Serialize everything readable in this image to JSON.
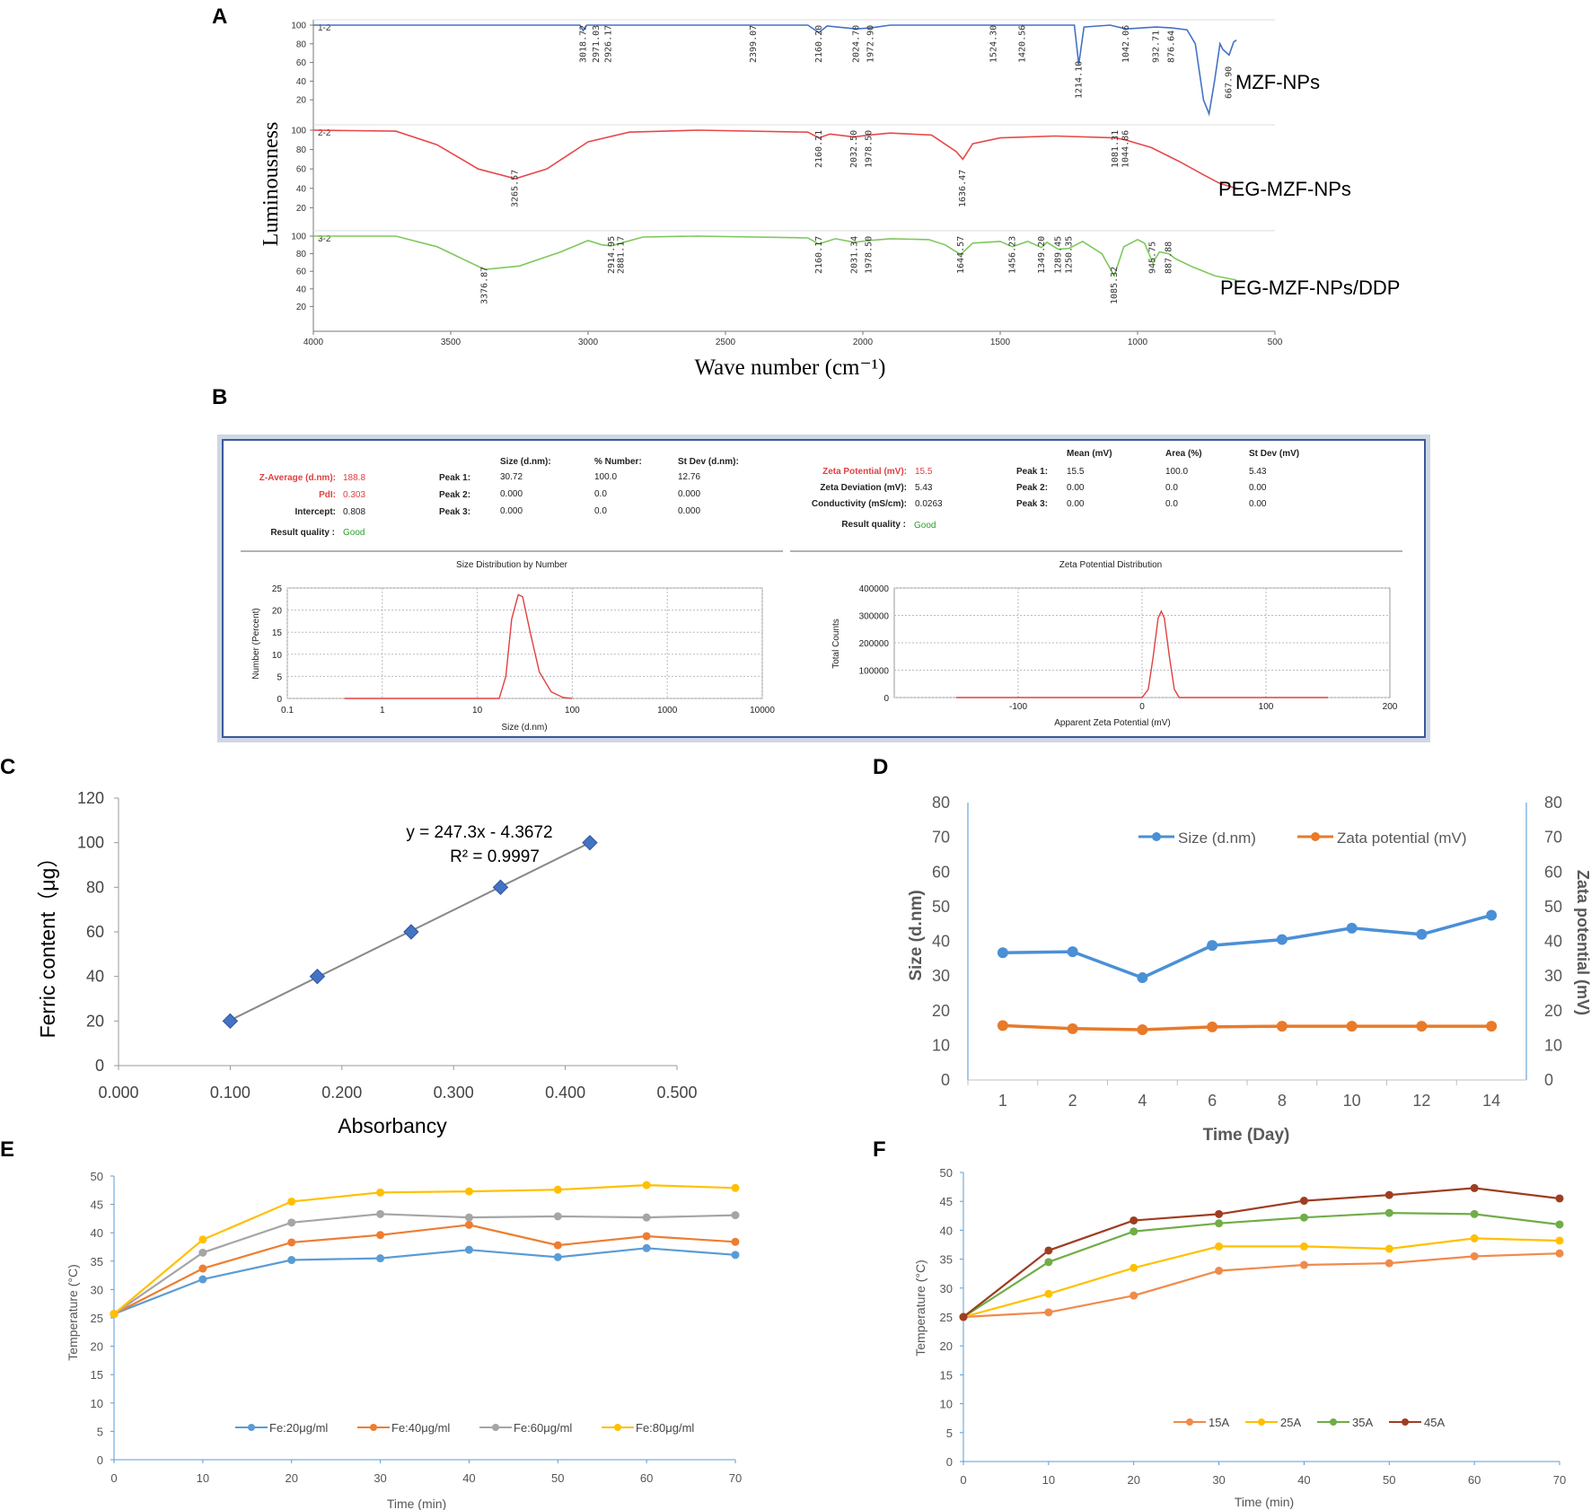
{
  "panels": {
    "A": {
      "label": "A"
    },
    "B": {
      "label": "B"
    },
    "C": {
      "label": "C"
    },
    "D": {
      "label": "D"
    },
    "E": {
      "label": "E"
    },
    "F": {
      "label": "F"
    }
  },
  "chart_data": [
    {
      "id": "A",
      "type": "line",
      "title": "",
      "xlabel": "Wave number (cm⁻¹)",
      "ylabel": "Luminousness",
      "xlim": [
        4000,
        500
      ],
      "x_ticks": [
        "4000",
        "3500",
        "3000",
        "2500",
        "2000",
        "1500",
        "1000",
        "500"
      ],
      "y_ticks": [
        "100",
        "80",
        "60",
        "40",
        "20"
      ],
      "series": [
        {
          "name": "MZF-NPs",
          "tag": "1-2",
          "color": "#4472C4",
          "points": [
            [
              4000,
              100
            ],
            [
              3030,
              100
            ],
            [
              3018,
              94
            ],
            [
              3005,
              100
            ],
            [
              2200,
              100
            ],
            [
              2160,
              92
            ],
            [
              2130,
              99
            ],
            [
              2024,
              96
            ],
            [
              1972,
              97
            ],
            [
              1900,
              100
            ],
            [
              1230,
              100
            ],
            [
              1214,
              58
            ],
            [
              1195,
              98
            ],
            [
              1100,
              100
            ],
            [
              1042,
              96
            ],
            [
              932,
              98
            ],
            [
              876,
              97
            ],
            [
              820,
              95
            ],
            [
              790,
              80
            ],
            [
              760,
              20
            ],
            [
              740,
              5
            ],
            [
              720,
              40
            ],
            [
              700,
              80
            ],
            [
              690,
              74
            ],
            [
              667,
              68
            ],
            [
              650,
              82
            ],
            [
              640,
              84
            ]
          ],
          "peaks": [
            "3018.72",
            "2971.03",
            "2926.17",
            "2399.07",
            "2160.20",
            "2024.70",
            "1972.90",
            "1524.30",
            "1420.56",
            "1214.10",
            "1042.06",
            "932.71",
            "876.64",
            "667.90"
          ]
        },
        {
          "name": "PEG-MZF-NPs",
          "tag": "2-2",
          "color": "#E8474A",
          "points": [
            [
              4000,
              100
            ],
            [
              3700,
              99
            ],
            [
              3550,
              85
            ],
            [
              3400,
              60
            ],
            [
              3265,
              50
            ],
            [
              3150,
              60
            ],
            [
              3000,
              88
            ],
            [
              2850,
              98
            ],
            [
              2600,
              100
            ],
            [
              2200,
              98
            ],
            [
              2160,
              92
            ],
            [
              2120,
              96
            ],
            [
              2032,
              93
            ],
            [
              1978,
              95
            ],
            [
              1900,
              97
            ],
            [
              1750,
              95
            ],
            [
              1660,
              78
            ],
            [
              1636,
              70
            ],
            [
              1600,
              86
            ],
            [
              1500,
              92
            ],
            [
              1300,
              94
            ],
            [
              1081,
              92
            ],
            [
              1044,
              90
            ],
            [
              950,
              82
            ],
            [
              850,
              68
            ],
            [
              760,
              54
            ],
            [
              700,
              45
            ],
            [
              640,
              40
            ]
          ],
          "peaks": [
            "3265.57",
            "2160.21",
            "2032.50",
            "1978.50",
            "1636.47",
            "1081.31",
            "1044.86"
          ]
        },
        {
          "name": "PEG-MZF-NPs/DDP",
          "tag": "3-2",
          "color": "#7EC85C",
          "points": [
            [
              4000,
              100
            ],
            [
              3700,
              100
            ],
            [
              3550,
              88
            ],
            [
              3376,
              62
            ],
            [
              3250,
              66
            ],
            [
              3100,
              82
            ],
            [
              3000,
              95
            ],
            [
              2950,
              90
            ],
            [
              2914,
              89
            ],
            [
              2881,
              92
            ],
            [
              2800,
              99
            ],
            [
              2600,
              100
            ],
            [
              2200,
              98
            ],
            [
              2160,
              91
            ],
            [
              2100,
              97
            ],
            [
              2031,
              93
            ],
            [
              1978,
              95
            ],
            [
              1900,
              97
            ],
            [
              1760,
              96
            ],
            [
              1700,
              90
            ],
            [
              1644,
              79
            ],
            [
              1600,
              92
            ],
            [
              1500,
              94
            ],
            [
              1456,
              88
            ],
            [
              1400,
              94
            ],
            [
              1350,
              87
            ],
            [
              1330,
              93
            ],
            [
              1289,
              85
            ],
            [
              1250,
              86
            ],
            [
              1200,
              94
            ],
            [
              1130,
              80
            ],
            [
              1085,
              55
            ],
            [
              1050,
              88
            ],
            [
              1000,
              96
            ],
            [
              975,
              92
            ],
            [
              945,
              70
            ],
            [
              920,
              82
            ],
            [
              887,
              80
            ],
            [
              860,
              74
            ],
            [
              800,
              65
            ],
            [
              720,
              55
            ],
            [
              640,
              50
            ]
          ],
          "peaks": [
            "3376.87",
            "2914.95",
            "2881.17",
            "2160.17",
            "2031.34",
            "1978.50",
            "1644.57",
            "1456.23",
            "1349.20",
            "1289.45",
            "1250.35",
            "1085.32",
            "945.75",
            "887.88"
          ]
        }
      ]
    },
    {
      "id": "B",
      "type": "table",
      "size_table": {
        "headers": [
          "Size (d.nm):",
          "% Number:",
          "St Dev (d.nm):"
        ],
        "left_rows": [
          {
            "label": "Z-Average (d.nm):",
            "value": "188.8",
            "highlight": true
          },
          {
            "label": "PdI:",
            "value": "0.303",
            "highlight": true
          },
          {
            "label": "Intercept:",
            "value": "0.808",
            "highlight": false
          }
        ],
        "peak_rows": [
          {
            "label": "Peak 1:",
            "values": [
              "30.72",
              "100.0",
              "12.76"
            ]
          },
          {
            "label": "Peak 2:",
            "values": [
              "0.000",
              "0.0",
              "0.000"
            ]
          },
          {
            "label": "Peak 3:",
            "values": [
              "0.000",
              "0.0",
              "0.000"
            ]
          }
        ],
        "quality_label": "Result quality :",
        "quality_value": "Good"
      },
      "zeta_table": {
        "headers": [
          "Mean (mV)",
          "Area (%)",
          "St Dev (mV)"
        ],
        "left_rows": [
          {
            "label": "Zeta Potential (mV):",
            "value": "15.5",
            "highlight": true
          },
          {
            "label": "Zeta Deviation (mV):",
            "value": "5.43",
            "highlight": false
          },
          {
            "label": "Conductivity (mS/cm):",
            "value": "0.0263",
            "highlight": false
          }
        ],
        "peak_rows": [
          {
            "label": "Peak 1:",
            "values": [
              "15.5",
              "100.0",
              "5.43"
            ]
          },
          {
            "label": "Peak 2:",
            "values": [
              "0.00",
              "0.0",
              "0.00"
            ]
          },
          {
            "label": "Peak 3:",
            "values": [
              "0.00",
              "0.0",
              "0.00"
            ]
          }
        ],
        "quality_label": "Result quality :",
        "quality_value": "Good"
      },
      "size_plot": {
        "title": "Size Distribution by Number",
        "xlabel": "Size (d.nm)",
        "ylabel": "Number (Percent)",
        "x_log": true,
        "xlim": [
          0.1,
          10000
        ],
        "ylim": [
          0,
          25
        ],
        "x_ticks": [
          "0.1",
          "1",
          "10",
          "100",
          "1000",
          "10000"
        ],
        "y_ticks": [
          "0",
          "5",
          "10",
          "15",
          "20",
          "25"
        ],
        "curve": [
          [
            0.4,
            0
          ],
          [
            17,
            0
          ],
          [
            20,
            5
          ],
          [
            23,
            18
          ],
          [
            27,
            23.5
          ],
          [
            30,
            23
          ],
          [
            36,
            15
          ],
          [
            45,
            6
          ],
          [
            60,
            1.5
          ],
          [
            80,
            0.2
          ],
          [
            100,
            0
          ]
        ]
      },
      "zeta_plot": {
        "title": "Zeta Potential Distribution",
        "xlabel": "Apparent Zeta Potential (mV)",
        "ylabel": "Total Counts",
        "xlim": [
          -200,
          200
        ],
        "ylim": [
          0,
          400000
        ],
        "x_ticks": [
          "-100",
          "0",
          "100",
          "200"
        ],
        "y_ticks": [
          "0",
          "100000",
          "200000",
          "300000",
          "400000"
        ],
        "curve": [
          [
            -150,
            0
          ],
          [
            0,
            0
          ],
          [
            5,
            30000
          ],
          [
            9,
            150000
          ],
          [
            13,
            290000
          ],
          [
            15.5,
            315000
          ],
          [
            18,
            290000
          ],
          [
            22,
            150000
          ],
          [
            26,
            30000
          ],
          [
            30,
            0
          ],
          [
            150,
            0
          ]
        ]
      }
    },
    {
      "id": "C",
      "type": "scatter",
      "xlabel": "Absorbancy",
      "ylabel": "Ferric content（μg）",
      "xlim": [
        0,
        0.5
      ],
      "ylim": [
        0,
        120
      ],
      "x_ticks": [
        "0.000",
        "0.100",
        "0.200",
        "0.300",
        "0.400",
        "0.500"
      ],
      "y_ticks": [
        "0",
        "20",
        "40",
        "60",
        "80",
        "100",
        "120"
      ],
      "x": [
        0.1,
        0.178,
        0.262,
        0.342,
        0.422
      ],
      "y": [
        20,
        40,
        60,
        80,
        100
      ],
      "trendline": {
        "slope": 247.3,
        "intercept": -4.3672
      },
      "equation": "y = 247.3x - 4.3672",
      "r2": "R² = 0.9997"
    },
    {
      "id": "D",
      "type": "line",
      "xlabel": "Time (Day)",
      "ylabel": "Size (d.nm)",
      "y2label": "Zata potential (mV)",
      "categories": [
        "1",
        "2",
        "4",
        "6",
        "8",
        "10",
        "12",
        "14"
      ],
      "ylim": [
        0,
        80
      ],
      "y_ticks": [
        "0",
        "10",
        "20",
        "30",
        "40",
        "50",
        "60",
        "70",
        "80"
      ],
      "series": [
        {
          "name": "Size (d.nm)",
          "color": "#4A90D6",
          "values": [
            36.7,
            37.0,
            29.5,
            38.8,
            40.5,
            43.8,
            42.0,
            47.5
          ]
        },
        {
          "name": "Zata potential (mV)",
          "color": "#E87A2A",
          "values": [
            15.7,
            14.8,
            14.5,
            15.3,
            15.5,
            15.5,
            15.5,
            15.5
          ]
        }
      ]
    },
    {
      "id": "E",
      "type": "line",
      "xlabel": "Time (min)",
      "ylabel": "Temperature (°C)",
      "x": [
        0,
        10,
        20,
        30,
        40,
        50,
        60,
        70
      ],
      "x_ticks": [
        "0",
        "10",
        "20",
        "30",
        "40",
        "50",
        "60",
        "70"
      ],
      "ylim": [
        0,
        50
      ],
      "y_ticks": [
        "0",
        "5",
        "10",
        "15",
        "20",
        "25",
        "30",
        "35",
        "40",
        "45",
        "50"
      ],
      "series": [
        {
          "name": "Fe:20μg/ml",
          "color": "#5B9BD5",
          "values": [
            25.7,
            31.8,
            35.2,
            35.5,
            37.0,
            35.7,
            37.3,
            36.1
          ]
        },
        {
          "name": "Fe:40μg/ml",
          "color": "#ED7D31",
          "values": [
            25.7,
            33.7,
            38.3,
            39.6,
            41.4,
            37.8,
            39.4,
            38.4
          ]
        },
        {
          "name": "Fe:60μg/ml",
          "color": "#A5A5A5",
          "values": [
            25.7,
            36.5,
            41.8,
            43.3,
            42.7,
            42.9,
            42.7,
            43.1
          ]
        },
        {
          "name": "Fe:80μg/ml",
          "color": "#FFC000",
          "values": [
            25.7,
            38.8,
            45.5,
            47.1,
            47.3,
            47.6,
            48.4,
            47.9
          ]
        }
      ]
    },
    {
      "id": "F",
      "type": "line",
      "xlabel": "Time (min)",
      "ylabel": "Temperature (°C)",
      "x": [
        0,
        10,
        20,
        30,
        40,
        50,
        60,
        70
      ],
      "x_ticks": [
        "0",
        "10",
        "20",
        "30",
        "40",
        "50",
        "60",
        "70"
      ],
      "ylim": [
        0,
        50
      ],
      "y_ticks": [
        "0",
        "5",
        "10",
        "15",
        "20",
        "25",
        "30",
        "35",
        "40",
        "45",
        "50"
      ],
      "series": [
        {
          "name": "15A",
          "color": "#F08A4B",
          "values": [
            25.0,
            25.8,
            28.7,
            33.0,
            34.0,
            34.3,
            35.5,
            36.0
          ]
        },
        {
          "name": "25A",
          "color": "#FFC000",
          "values": [
            25.0,
            29.0,
            33.5,
            37.2,
            37.2,
            36.8,
            38.6,
            38.2
          ]
        },
        {
          "name": "35A",
          "color": "#70AD47",
          "values": [
            25.0,
            34.5,
            39.8,
            41.2,
            42.2,
            43.0,
            42.8,
            41.0
          ]
        },
        {
          "name": "45A",
          "color": "#9E3D22",
          "values": [
            25.0,
            36.5,
            41.7,
            42.8,
            45.1,
            46.1,
            47.3,
            45.5
          ]
        }
      ]
    }
  ]
}
